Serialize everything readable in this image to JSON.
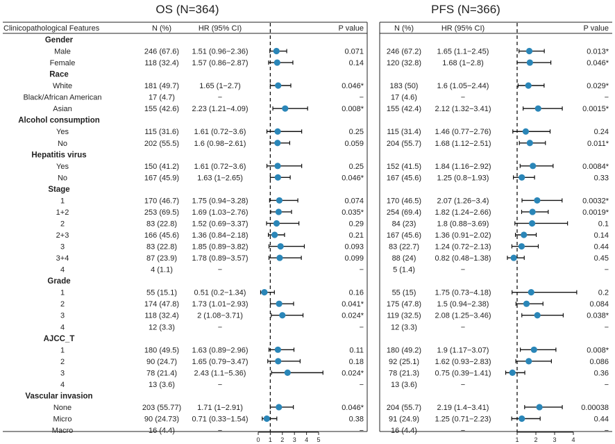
{
  "chart_data": {
    "type": "forest",
    "headers": {
      "feature": "Clinicopathological Features",
      "n": "N (%)",
      "hr": "HR (95% CI)",
      "p": "P value"
    },
    "panels": [
      {
        "id": "os",
        "title": "OS (N=364)",
        "xlim": [
          0,
          5
        ],
        "ticks": [
          0,
          1,
          2,
          3,
          4,
          5
        ],
        "ref": 1
      },
      {
        "id": "pfs",
        "title": "PFS (N=366)",
        "xlim": [
          0,
          4
        ],
        "ticks": [
          1,
          2,
          3,
          4
        ],
        "ref": 1
      }
    ],
    "rows": [
      {
        "group": "Gender"
      },
      {
        "label": "Male",
        "os": {
          "n": "246 (67.6)",
          "hr": "1.51 (0.96−2.36)",
          "p": "0.071",
          "est": 1.51,
          "lo": 0.96,
          "hi": 2.36
        },
        "pfs": {
          "n": "246 (67.2)",
          "hr": "1.65 (1.1−2.45)",
          "p": "0.013*",
          "est": 1.65,
          "lo": 1.1,
          "hi": 2.45
        }
      },
      {
        "label": "Female",
        "os": {
          "n": "118 (32.4)",
          "hr": "1.57 (0.86−2.87)",
          "p": "0.14",
          "est": 1.57,
          "lo": 0.86,
          "hi": 2.87
        },
        "pfs": {
          "n": "120 (32.8)",
          "hr": "1.68 (1−2.8)",
          "p": "0.046*",
          "est": 1.68,
          "lo": 1.0,
          "hi": 2.8
        }
      },
      {
        "group": "Race"
      },
      {
        "label": "White",
        "os": {
          "n": "181 (49.7)",
          "hr": "1.65 (1−2.7)",
          "p": "0.046*",
          "est": 1.65,
          "lo": 1.0,
          "hi": 2.7
        },
        "pfs": {
          "n": "183 (50)",
          "hr": "1.6 (1.05−2.44)",
          "p": "0.029*",
          "est": 1.6,
          "lo": 1.05,
          "hi": 2.44
        }
      },
      {
        "label": "Black/African American",
        "os": {
          "n": "17 (4.7)",
          "hr": "−",
          "p": "−"
        },
        "pfs": {
          "n": "17 (4.6)",
          "hr": "−",
          "p": "−"
        }
      },
      {
        "label": "Asian",
        "os": {
          "n": "155 (42.6)",
          "hr": "2.23 (1.21−4.09)",
          "p": "0.008*",
          "est": 2.23,
          "lo": 1.21,
          "hi": 4.09
        },
        "pfs": {
          "n": "155 (42.4)",
          "hr": "2.12 (1.32−3.41)",
          "p": "0.0015*",
          "est": 2.12,
          "lo": 1.32,
          "hi": 3.41
        }
      },
      {
        "group": "Alcohol consumption"
      },
      {
        "label": "Yes",
        "os": {
          "n": "115 (31.6)",
          "hr": "1.61 (0.72−3.6)",
          "p": "0.25",
          "est": 1.61,
          "lo": 0.72,
          "hi": 3.6
        },
        "pfs": {
          "n": "115 (31.4)",
          "hr": "1.46 (0.77−2.76)",
          "p": "0.24",
          "est": 1.46,
          "lo": 0.77,
          "hi": 2.76
        }
      },
      {
        "label": "No",
        "os": {
          "n": "202 (55.5)",
          "hr": "1.6 (0.98−2.61)",
          "p": "0.059",
          "est": 1.6,
          "lo": 0.98,
          "hi": 2.61
        },
        "pfs": {
          "n": "204 (55.7)",
          "hr": "1.68 (1.12−2.51)",
          "p": "0.011*",
          "est": 1.68,
          "lo": 1.12,
          "hi": 2.51
        }
      },
      {
        "group": "Hepatitis virus"
      },
      {
        "label": "Yes",
        "os": {
          "n": "150 (41.2)",
          "hr": "1.61 (0.72−3.6)",
          "p": "0.25",
          "est": 1.61,
          "lo": 0.72,
          "hi": 3.6
        },
        "pfs": {
          "n": "152 (41.5)",
          "hr": "1.84 (1.16−2.92)",
          "p": "0.0084*",
          "est": 1.84,
          "lo": 1.16,
          "hi": 2.92
        }
      },
      {
        "label": "No",
        "os": {
          "n": "167 (45.9)",
          "hr": "1.63 (1−2.65)",
          "p": "0.046*",
          "est": 1.63,
          "lo": 1.0,
          "hi": 2.65
        },
        "pfs": {
          "n": "167 (45.6)",
          "hr": "1.25 (0.8−1.93)",
          "p": "0.33",
          "est": 1.25,
          "lo": 0.8,
          "hi": 1.93
        }
      },
      {
        "group": "Stage"
      },
      {
        "label": "1",
        "os": {
          "n": "170 (46.7)",
          "hr": "1.75 (0.94−3.28)",
          "p": "0.074",
          "est": 1.75,
          "lo": 0.94,
          "hi": 3.28
        },
        "pfs": {
          "n": "170 (46.5)",
          "hr": "2.07 (1.26−3.4)",
          "p": "0.0032*",
          "est": 2.07,
          "lo": 1.26,
          "hi": 3.4
        }
      },
      {
        "label": "1+2",
        "os": {
          "n": "253 (69.5)",
          "hr": "1.69 (1.03−2.76)",
          "p": "0.035*",
          "est": 1.69,
          "lo": 1.03,
          "hi": 2.76
        },
        "pfs": {
          "n": "254 (69.4)",
          "hr": "1.82 (1.24−2.66)",
          "p": "0.0019*",
          "est": 1.82,
          "lo": 1.24,
          "hi": 2.66
        }
      },
      {
        "label": "2",
        "os": {
          "n": "83 (22.8)",
          "hr": "1.52 (0.69−3.37)",
          "p": "0.29",
          "est": 1.52,
          "lo": 0.69,
          "hi": 3.37
        },
        "pfs": {
          "n": "84 (23)",
          "hr": "1.8 (0.88−3.69)",
          "p": "0.1",
          "est": 1.8,
          "lo": 0.88,
          "hi": 3.69
        }
      },
      {
        "label": "2+3",
        "os": {
          "n": "166 (45.6)",
          "hr": "1.36 (0.84−2.18)",
          "p": "0.21",
          "est": 1.36,
          "lo": 0.84,
          "hi": 2.18
        },
        "pfs": {
          "n": "167 (45.6)",
          "hr": "1.36 (0.91−2.02)",
          "p": "0.14",
          "est": 1.36,
          "lo": 0.91,
          "hi": 2.02
        }
      },
      {
        "label": "3",
        "os": {
          "n": "83 (22.8)",
          "hr": "1.85 (0.89−3.82)",
          "p": "0.093",
          "est": 1.85,
          "lo": 0.89,
          "hi": 3.82
        },
        "pfs": {
          "n": "83 (22.7)",
          "hr": "1.24 (0.72−2.13)",
          "p": "0.44",
          "est": 1.24,
          "lo": 0.72,
          "hi": 2.13
        }
      },
      {
        "label": "3+4",
        "os": {
          "n": "87 (23.9)",
          "hr": "1.78 (0.89−3.57)",
          "p": "0.099",
          "est": 1.78,
          "lo": 0.89,
          "hi": 3.57
        },
        "pfs": {
          "n": "88 (24)",
          "hr": "0.82 (0.48−1.38)",
          "p": "0.45",
          "est": 0.82,
          "lo": 0.48,
          "hi": 1.38
        }
      },
      {
        "label": "4",
        "os": {
          "n": "4 (1.1)",
          "hr": "−",
          "p": "−"
        },
        "pfs": {
          "n": "5 (1.4)",
          "hr": "−",
          "p": "−"
        }
      },
      {
        "group": "Grade"
      },
      {
        "label": "1",
        "os": {
          "n": "55 (15.1)",
          "hr": "0.51 (0.2−1.34)",
          "p": "0.16",
          "est": 0.51,
          "lo": 0.2,
          "hi": 1.34
        },
        "pfs": {
          "n": "55 (15)",
          "hr": "1.75 (0.73−4.18)",
          "p": "0.2",
          "est": 1.75,
          "lo": 0.73,
          "hi": 4.18
        }
      },
      {
        "label": "2",
        "os": {
          "n": "174 (47.8)",
          "hr": "1.73 (1.01−2.93)",
          "p": "0.041*",
          "est": 1.73,
          "lo": 1.01,
          "hi": 2.93
        },
        "pfs": {
          "n": "175 (47.8)",
          "hr": "1.5 (0.94−2.38)",
          "p": "0.084",
          "est": 1.5,
          "lo": 0.94,
          "hi": 2.38
        }
      },
      {
        "label": "3",
        "os": {
          "n": "118 (32.4)",
          "hr": "2 (1.08−3.71)",
          "p": "0.024*",
          "est": 2.0,
          "lo": 1.08,
          "hi": 3.71
        },
        "pfs": {
          "n": "119 (32.5)",
          "hr": "2.08 (1.25−3.46)",
          "p": "0.038*",
          "est": 2.08,
          "lo": 1.25,
          "hi": 3.46
        }
      },
      {
        "label": "4",
        "os": {
          "n": "12 (3.3)",
          "hr": "−",
          "p": "−"
        },
        "pfs": {
          "n": "12 (3.3)",
          "hr": "−",
          "p": "−"
        }
      },
      {
        "group": "AJCC_T"
      },
      {
        "label": "1",
        "os": {
          "n": "180 (49.5)",
          "hr": "1.63 (0.89−2.96)",
          "p": "0.11",
          "est": 1.63,
          "lo": 0.89,
          "hi": 2.96
        },
        "pfs": {
          "n": "180 (49.2)",
          "hr": "1.9 (1.17−3.07)",
          "p": "0.008*",
          "est": 1.9,
          "lo": 1.17,
          "hi": 3.07
        }
      },
      {
        "label": "2",
        "os": {
          "n": "90 (24.7)",
          "hr": "1.65 (0.79−3.47)",
          "p": "0.18",
          "est": 1.65,
          "lo": 0.79,
          "hi": 3.47
        },
        "pfs": {
          "n": "92 (25.1)",
          "hr": "1.62 (0.93−2.83)",
          "p": "0.086",
          "est": 1.62,
          "lo": 0.93,
          "hi": 2.83
        }
      },
      {
        "label": "3",
        "os": {
          "n": "78 (21.4)",
          "hr": "2.43 (1.1−5.36)",
          "p": "0.024*",
          "est": 2.43,
          "lo": 1.1,
          "hi": 5.36
        },
        "pfs": {
          "n": "78 (21.3)",
          "hr": "0.75 (0.39−1.41)",
          "p": "0.36",
          "est": 0.75,
          "lo": 0.39,
          "hi": 1.41
        }
      },
      {
        "label": "4",
        "os": {
          "n": "13 (3.6)",
          "hr": "−",
          "p": "−"
        },
        "pfs": {
          "n": "13 (3.6)",
          "hr": "−",
          "p": "−"
        }
      },
      {
        "group": "Vascular invasion"
      },
      {
        "label": "None",
        "os": {
          "n": "203 (55.77)",
          "hr": "1.71 (1−2.91)",
          "p": "0.046*",
          "est": 1.71,
          "lo": 1.0,
          "hi": 2.91
        },
        "pfs": {
          "n": "204 (55.7)",
          "hr": "2.19 (1.4−3.41)",
          "p": "0.00038",
          "est": 2.19,
          "lo": 1.4,
          "hi": 3.41
        }
      },
      {
        "label": "Micro",
        "os": {
          "n": "90 (24.73)",
          "hr": "0.71 (0.33−1.54)",
          "p": "0.38",
          "est": 0.71,
          "lo": 0.33,
          "hi": 1.54
        },
        "pfs": {
          "n": "91 (24.9)",
          "hr": "1.25 (0.71−2.23)",
          "p": "0.44",
          "est": 1.25,
          "lo": 0.71,
          "hi": 2.23
        }
      },
      {
        "label": "Macro",
        "os": {
          "n": "16 (4.4)",
          "hr": "−",
          "p": "−"
        },
        "pfs": {
          "n": "16 (4.4)",
          "hr": "−",
          "p": "−"
        }
      }
    ],
    "colors": {
      "point": "#2a86b8",
      "line": "#111111",
      "ref_line": "#111111"
    }
  }
}
